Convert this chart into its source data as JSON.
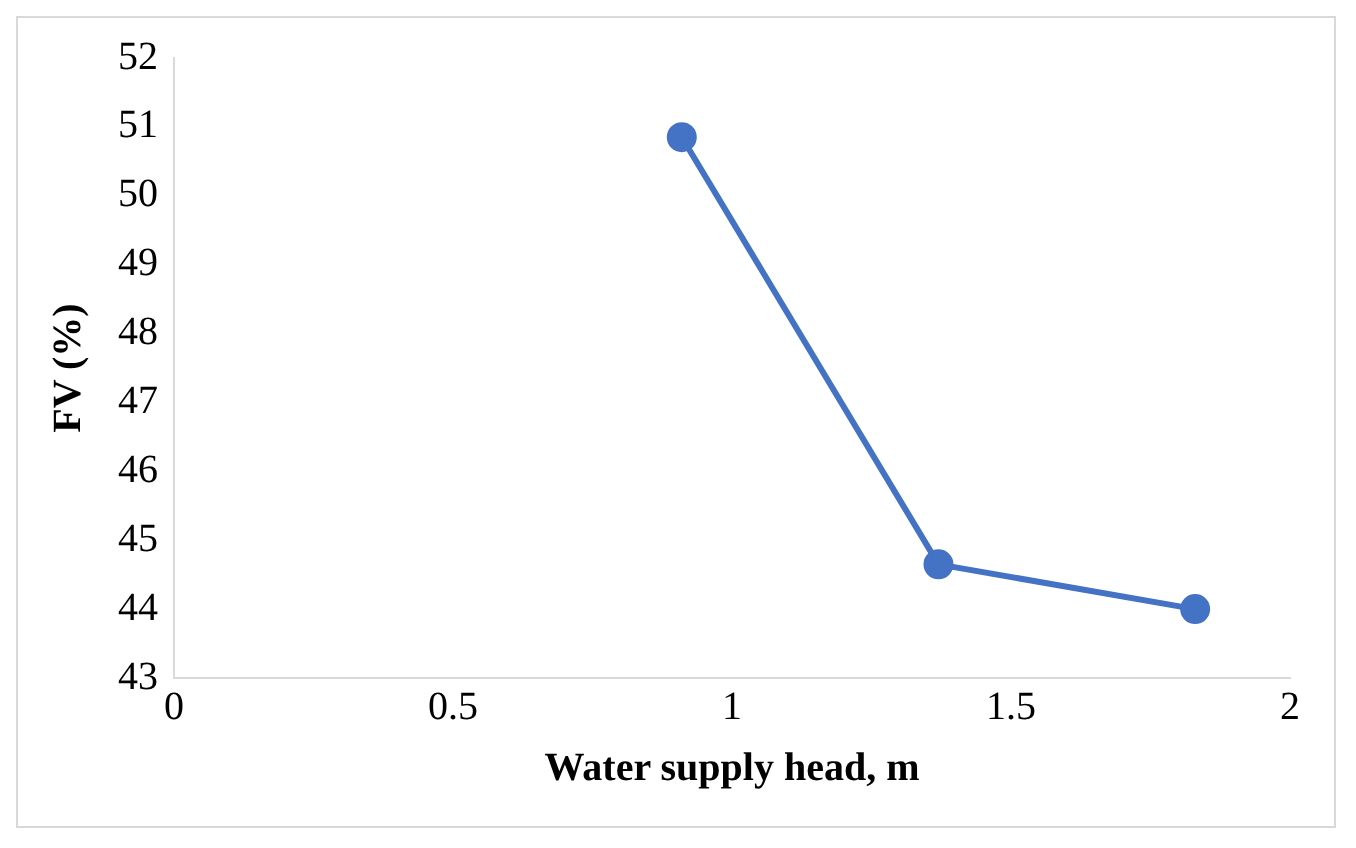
{
  "chart_data": {
    "type": "line",
    "xlabel": "Water supply head, m",
    "ylabel": "FV (%)",
    "x": [
      0.91,
      1.37,
      1.83
    ],
    "series": [
      {
        "color": "#4472c4",
        "values": [
          50.85,
          44.65,
          44.0
        ]
      }
    ],
    "xlim": [
      0,
      2
    ],
    "xticks": [
      0,
      0.5,
      1,
      1.5,
      2
    ],
    "ylim": [
      43,
      52
    ],
    "yticks": [
      43,
      44,
      45,
      46,
      47,
      48,
      49,
      50,
      51,
      52
    ],
    "grid": false,
    "legend": false,
    "marker": "circle",
    "line_style": "solid"
  }
}
